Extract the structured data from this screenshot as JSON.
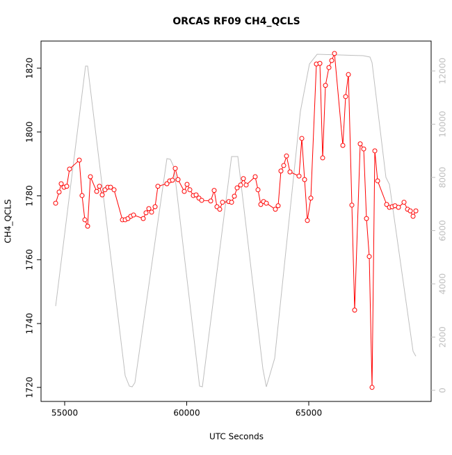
{
  "chart_data": {
    "type": "line",
    "title": "ORCAS RF09 CH4_QCLS",
    "x_label": "UTC Seconds",
    "y_label": "CH4_QCLS",
    "xlim": [
      54031,
      70014
    ],
    "xticks": [
      55000,
      60000,
      65000
    ],
    "ylim": [
      1715.6,
      1828.5
    ],
    "yticks": [
      1720,
      1740,
      1760,
      1780,
      1800,
      1820
    ],
    "y2lim": [
      -418,
      13124
    ],
    "y2ticks": [
      0,
      2000,
      4000,
      6000,
      8000,
      10000,
      12000
    ],
    "y2color": "#bebebe",
    "series": [
      {
        "color": "#bebebe",
        "axis": "y2",
        "markers": false,
        "x": [
          54630,
          55855,
          55940,
          57479,
          57650,
          57764,
          57877,
          59188,
          59330,
          59473,
          60527,
          60641,
          61838,
          62094,
          63120,
          63262,
          63604,
          64658,
          65028,
          65342,
          67222,
          67507,
          67593,
          68162,
          68305,
          69274,
          69388
        ],
        "values": [
          3163,
          12183,
          12183,
          549,
          157,
          131,
          288,
          8706,
          8680,
          8392,
          157,
          131,
          8784,
          8784,
          810,
          131,
          1203,
          10484,
          12261,
          12627,
          12575,
          12523,
          12314,
          8000,
          7739,
          1464,
          1281
        ]
      },
      {
        "color": "#ff0000",
        "axis": "y",
        "markers": true,
        "x": [
          54630,
          54772,
          54858,
          54972,
          55085,
          55199,
          55598,
          55712,
          55826,
          55940,
          56054,
          56311,
          56425,
          56538,
          56652,
          56766,
          56880,
          57023,
          57365,
          57479,
          57593,
          57707,
          57821,
          58219,
          58333,
          58447,
          58561,
          58704,
          58818,
          59188,
          59302,
          59416,
          59530,
          59644,
          59900,
          60014,
          60128,
          60271,
          60385,
          60499,
          60613,
          60983,
          61125,
          61239,
          61353,
          61467,
          61724,
          61838,
          61952,
          62066,
          62208,
          62322,
          62436,
          62806,
          62920,
          63034,
          63148,
          63262,
          63632,
          63746,
          63860,
          63974,
          64088,
          64231,
          64601,
          64715,
          64829,
          64943,
          65085,
          65313,
          65456,
          65570,
          65684,
          65826,
          65940,
          66054,
          66396,
          66510,
          66624,
          66766,
          66880,
          67108,
          67251,
          67365,
          67479,
          67593,
          67707,
          67821,
          68191,
          68305,
          68419,
          68533,
          68675,
          68903,
          69046,
          69160,
          69274,
          69388
        ],
        "values": [
          1777.7,
          1781.2,
          1783.8,
          1782.7,
          1783.0,
          1788.4,
          1791.2,
          1780.1,
          1772.5,
          1770.5,
          1786.0,
          1781.4,
          1783.0,
          1780.3,
          1781.9,
          1782.7,
          1782.7,
          1781.9,
          1772.5,
          1772.5,
          1772.9,
          1773.6,
          1774.0,
          1772.9,
          1774.7,
          1776.0,
          1774.9,
          1776.6,
          1783.0,
          1783.8,
          1784.7,
          1784.9,
          1788.6,
          1785.1,
          1781.4,
          1783.6,
          1781.9,
          1780.1,
          1780.3,
          1779.3,
          1778.6,
          1778.4,
          1781.7,
          1776.6,
          1775.8,
          1778.0,
          1778.2,
          1778.0,
          1779.9,
          1782.5,
          1783.4,
          1785.4,
          1783.4,
          1786.0,
          1781.9,
          1777.3,
          1778.2,
          1777.7,
          1775.8,
          1776.9,
          1787.8,
          1789.5,
          1792.5,
          1787.5,
          1786.2,
          1798.0,
          1785.1,
          1772.3,
          1779.3,
          1821.3,
          1821.5,
          1791.9,
          1814.6,
          1820.2,
          1822.4,
          1824.6,
          1795.8,
          1811.1,
          1818.0,
          1777.1,
          1744.2,
          1796.3,
          1794.7,
          1772.9,
          1761.0,
          1720.0,
          1794.1,
          1784.7,
          1777.3,
          1776.4,
          1776.6,
          1776.9,
          1776.4,
          1778.0,
          1775.8,
          1775.3,
          1773.6,
          1775.3
        ]
      }
    ]
  }
}
